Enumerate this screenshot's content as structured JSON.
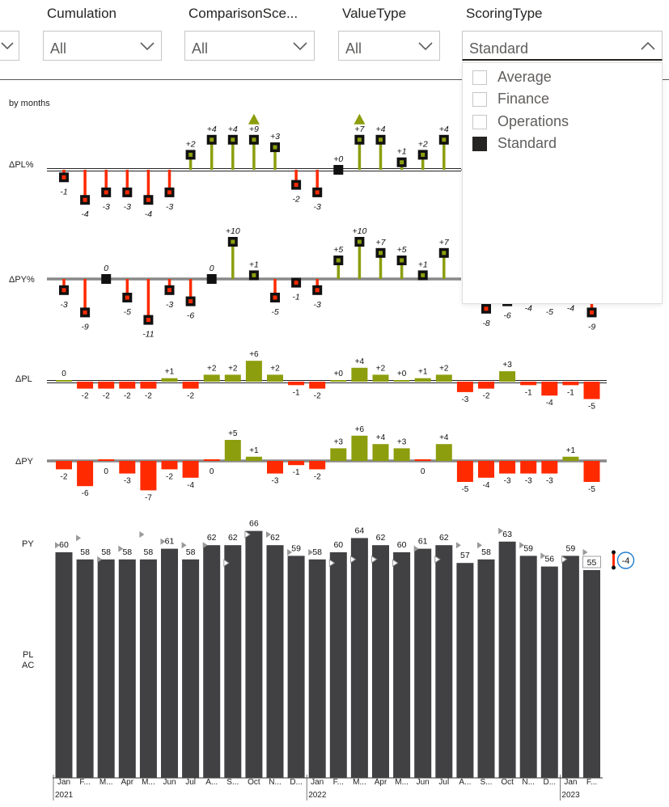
{
  "filters": [
    {
      "label": "Cumulation",
      "value": "All"
    },
    {
      "label": "ComparisonSce...",
      "value": "All"
    },
    {
      "label": "ValueType",
      "value": "All"
    },
    {
      "label": "ScoringType",
      "value": "Standard"
    }
  ],
  "dropdown": {
    "options": [
      {
        "label": "Average",
        "checked": false
      },
      {
        "label": "Finance",
        "checked": false
      },
      {
        "label": "Operations",
        "checked": false
      },
      {
        "label": "Standard",
        "checked": true
      }
    ]
  },
  "chart_data": {
    "type": "bar",
    "subtitle": "by months",
    "months": [
      "Jan",
      "F...",
      "M...",
      "Apr",
      "M...",
      "Jun",
      "Jul",
      "A...",
      "S...",
      "Oct",
      "N...",
      "D...",
      "Jan",
      "F...",
      "M...",
      "Apr",
      "M...",
      "Jun",
      "Jul",
      "A...",
      "S...",
      "Oct",
      "N...",
      "D...",
      "Jan",
      "F..."
    ],
    "years": [
      "2021",
      "2022",
      "2023"
    ],
    "row_labels": {
      "dpl_pct": "ΔPL%",
      "dpy_pct": "ΔPY%",
      "dpl": "ΔPL",
      "dpy": "ΔPY",
      "py": "PY",
      "pl": "PL",
      "ac": "AC"
    },
    "dpl_pct": [
      -1,
      -4,
      -3,
      -3,
      -4,
      -3,
      2,
      4,
      4,
      9,
      3,
      -2,
      -3,
      0,
      7,
      4,
      1,
      2,
      4,
      null,
      null,
      null,
      null,
      null,
      null,
      null
    ],
    "dpy_pct": [
      -3,
      -9,
      0,
      -5,
      -11,
      -3,
      -6,
      0,
      10,
      1,
      -5,
      -1,
      -3,
      5,
      10,
      7,
      5,
      1,
      7,
      null,
      -8,
      -6,
      -4,
      -5,
      -4,
      -9
    ],
    "dpl": [
      0,
      -2,
      -2,
      -2,
      -2,
      1,
      -2,
      2,
      2,
      6,
      2,
      -1,
      -2,
      0,
      4,
      2,
      0,
      1,
      2,
      -3,
      -2,
      3,
      -1,
      -4,
      -1,
      -5
    ],
    "dpy": [
      -2,
      -6,
      0,
      -3,
      -7,
      -2,
      -4,
      0,
      5,
      1,
      -3,
      -1,
      -2,
      3,
      6,
      4,
      3,
      0,
      4,
      -5,
      -4,
      -3,
      -3,
      -3,
      1,
      -5
    ],
    "ac": [
      60,
      58,
      58,
      58,
      58,
      61,
      58,
      62,
      62,
      66,
      62,
      59,
      58,
      60,
      64,
      62,
      60,
      61,
      62,
      57,
      58,
      63,
      59,
      56,
      59,
      55
    ],
    "variance_label": "-4",
    "colors": {
      "positive": "#8c9e0d",
      "negative": "#ff2a00",
      "bar": "#414042",
      "accent": "#1f7cd0"
    }
  }
}
